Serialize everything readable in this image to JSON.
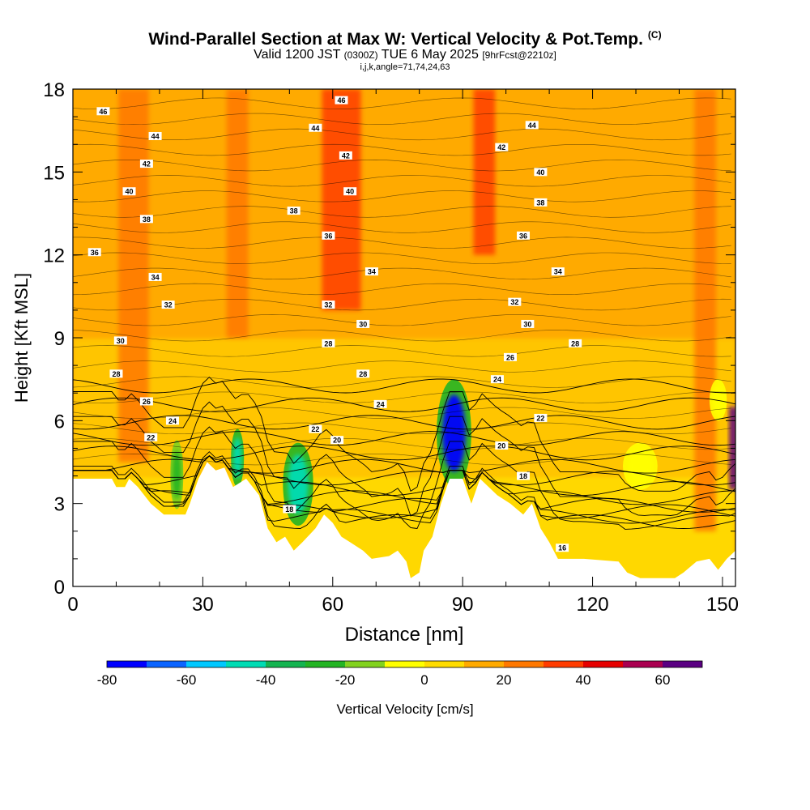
{
  "title": {
    "main": "Wind-Parallel Section at Max W: Vertical Velocity & Pot.Temp.",
    "copyright": "(C)",
    "valid_prefix": "Valid 1200 JST",
    "valid_utc": "(0300Z)",
    "valid_date": "TUE 6 May 2025",
    "forecast": "[9hrFcst@2210z]",
    "indices": "i,j,k,angle=71,74,24,63"
  },
  "chart_data": {
    "type": "heatmap",
    "xlabel": "Distance [nm]",
    "ylabel": "Height [Kft MSL]",
    "xlim": [
      0,
      153
    ],
    "ylim": [
      0,
      18
    ],
    "xticks": [
      0,
      30,
      60,
      90,
      120,
      150
    ],
    "yticks": [
      0,
      3,
      6,
      9,
      12,
      15,
      18
    ],
    "grid": false,
    "colorbar": {
      "label": "Vertical Velocity [cm/s]",
      "range": [
        -80,
        70
      ],
      "step": 10,
      "tick_labels": [
        "-80",
        "-60",
        "-40",
        "-20",
        "0",
        "20",
        "40",
        "60"
      ],
      "tick_values": [
        -80,
        -60,
        -40,
        -20,
        0,
        20,
        40,
        60
      ],
      "colors": [
        "#0000ff",
        "#0a64ff",
        "#00c8ff",
        "#00dcb4",
        "#14b450",
        "#23b423",
        "#82d21e",
        "#ffff00",
        "#ffdc00",
        "#ffaa00",
        "#ff7800",
        "#ff3c00",
        "#e60000",
        "#aa0050",
        "#5a0082"
      ]
    },
    "terrain_kft": [
      [
        0,
        3.9
      ],
      [
        9,
        3.9
      ],
      [
        10,
        3.6
      ],
      [
        12,
        3.6
      ],
      [
        13,
        3.9
      ],
      [
        15,
        3.6
      ],
      [
        18,
        3.0
      ],
      [
        21,
        2.6
      ],
      [
        26,
        2.6
      ],
      [
        27,
        3.0
      ],
      [
        29,
        3.9
      ],
      [
        31,
        4.5
      ],
      [
        33,
        4.2
      ],
      [
        35,
        4.3
      ],
      [
        37,
        3.6
      ],
      [
        40,
        3.9
      ],
      [
        43,
        3.3
      ],
      [
        45,
        2.1
      ],
      [
        47,
        1.6
      ],
      [
        49,
        1.8
      ],
      [
        51,
        1.3
      ],
      [
        53,
        1.6
      ],
      [
        56,
        2.1
      ],
      [
        58,
        2.6
      ],
      [
        60,
        2.3
      ],
      [
        62,
        1.8
      ],
      [
        64,
        1.6
      ],
      [
        67,
        1.3
      ],
      [
        69,
        1.0
      ],
      [
        73,
        1.1
      ],
      [
        75,
        1.3
      ],
      [
        77,
        0.9
      ],
      [
        78,
        0.3
      ],
      [
        80,
        0.5
      ],
      [
        81,
        1.3
      ],
      [
        83,
        1.8
      ],
      [
        85,
        3.0
      ],
      [
        87,
        3.9
      ],
      [
        90,
        3.9
      ],
      [
        92,
        3.0
      ],
      [
        94,
        3.9
      ],
      [
        96,
        3.6
      ],
      [
        98,
        3.3
      ],
      [
        101,
        3.0
      ],
      [
        104,
        2.6
      ],
      [
        106,
        3.0
      ],
      [
        108,
        2.1
      ],
      [
        110,
        1.6
      ],
      [
        112,
        1.0
      ],
      [
        118,
        1.0
      ],
      [
        126,
        0.9
      ],
      [
        128,
        0.5
      ],
      [
        131,
        0.3
      ],
      [
        139,
        0.3
      ],
      [
        141,
        0.5
      ],
      [
        144,
        0.9
      ],
      [
        147,
        1.0
      ],
      [
        149,
        0.6
      ],
      [
        151,
        1.0
      ],
      [
        153,
        1.3
      ]
    ],
    "theta_contours_k": [
      16,
      18,
      20,
      22,
      24,
      26,
      28,
      30,
      32,
      34,
      36,
      38,
      40,
      42,
      44,
      46
    ],
    "contour_labels": [
      {
        "text": "46",
        "x": 7,
        "y": 17.2
      },
      {
        "text": "46",
        "x": 62,
        "y": 17.6
      },
      {
        "text": "44",
        "x": 19,
        "y": 16.3
      },
      {
        "text": "44",
        "x": 56,
        "y": 16.6
      },
      {
        "text": "44",
        "x": 106,
        "y": 16.7
      },
      {
        "text": "42",
        "x": 17,
        "y": 15.3
      },
      {
        "text": "42",
        "x": 63,
        "y": 15.6
      },
      {
        "text": "42",
        "x": 99,
        "y": 15.9
      },
      {
        "text": "40",
        "x": 13,
        "y": 14.3
      },
      {
        "text": "40",
        "x": 64,
        "y": 14.3
      },
      {
        "text": "40",
        "x": 108,
        "y": 15.0
      },
      {
        "text": "38",
        "x": 17,
        "y": 13.3
      },
      {
        "text": "38",
        "x": 51,
        "y": 13.6
      },
      {
        "text": "38",
        "x": 108,
        "y": 13.9
      },
      {
        "text": "36",
        "x": 5,
        "y": 12.1
      },
      {
        "text": "36",
        "x": 59,
        "y": 12.7
      },
      {
        "text": "36",
        "x": 104,
        "y": 12.7
      },
      {
        "text": "34",
        "x": 19,
        "y": 11.2
      },
      {
        "text": "34",
        "x": 69,
        "y": 11.4
      },
      {
        "text": "34",
        "x": 112,
        "y": 11.4
      },
      {
        "text": "32",
        "x": 22,
        "y": 10.2
      },
      {
        "text": "32",
        "x": 59,
        "y": 10.2
      },
      {
        "text": "32",
        "x": 102,
        "y": 10.3
      },
      {
        "text": "30",
        "x": 11,
        "y": 8.9
      },
      {
        "text": "30",
        "x": 67,
        "y": 9.5
      },
      {
        "text": "30",
        "x": 105,
        "y": 9.5
      },
      {
        "text": "28",
        "x": 10,
        "y": 7.7
      },
      {
        "text": "28",
        "x": 59,
        "y": 8.8
      },
      {
        "text": "28",
        "x": 67,
        "y": 7.7
      },
      {
        "text": "28",
        "x": 116,
        "y": 8.8
      },
      {
        "text": "26",
        "x": 17,
        "y": 6.7
      },
      {
        "text": "26",
        "x": 101,
        "y": 8.3
      },
      {
        "text": "24",
        "x": 23,
        "y": 6.0
      },
      {
        "text": "24",
        "x": 71,
        "y": 6.6
      },
      {
        "text": "24",
        "x": 98,
        "y": 7.5
      },
      {
        "text": "22",
        "x": 18,
        "y": 5.4
      },
      {
        "text": "22",
        "x": 56,
        "y": 5.7
      },
      {
        "text": "22",
        "x": 108,
        "y": 6.1
      },
      {
        "text": "20",
        "x": 61,
        "y": 5.3
      },
      {
        "text": "20",
        "x": 99,
        "y": 5.1
      },
      {
        "text": "18",
        "x": 50,
        "y": 2.8
      },
      {
        "text": "18",
        "x": 104,
        "y": 4.0
      },
      {
        "text": "16",
        "x": 113,
        "y": 1.4
      }
    ],
    "velocity_features": [
      {
        "kind": "updraft_column",
        "x": 14,
        "width": 7,
        "y_min": 4.5,
        "y_max": 18,
        "w": 25
      },
      {
        "kind": "updraft_column",
        "x": 38,
        "width": 5,
        "y_min": 9,
        "y_max": 18,
        "w": 20
      },
      {
        "kind": "updraft_column",
        "x": 62,
        "width": 9,
        "y_min": 10,
        "y_max": 18,
        "w": 35
      },
      {
        "kind": "updraft_column",
        "x": 95,
        "width": 5,
        "y_min": 12,
        "y_max": 18,
        "w": 30
      },
      {
        "kind": "updraft_column",
        "x": 146,
        "width": 5,
        "y_min": 2,
        "y_max": 18,
        "w": 25
      },
      {
        "kind": "downdraft",
        "x": 88,
        "width": 8,
        "y_min": 3.6,
        "y_max": 7.5,
        "w": -80
      },
      {
        "kind": "downdraft",
        "x": 52,
        "width": 7,
        "y_min": 2.2,
        "y_max": 5.2,
        "w": -45
      },
      {
        "kind": "downdraft",
        "x": 38,
        "width": 3,
        "y_min": 3.6,
        "y_max": 5.7,
        "w": -45
      },
      {
        "kind": "downdraft",
        "x": 24,
        "width": 3,
        "y_min": 2.8,
        "y_max": 5.3,
        "w": -30
      },
      {
        "kind": "downdraft",
        "x": 131,
        "width": 8,
        "y_min": 3.5,
        "y_max": 5.2,
        "w": -10
      },
      {
        "kind": "downdraft",
        "x": 149,
        "width": 4,
        "y_min": 6,
        "y_max": 7.5,
        "w": -10
      },
      {
        "kind": "updraft_edge",
        "x": 152.5,
        "width": 2,
        "y_min": 3.5,
        "y_max": 6.5,
        "w": 65
      }
    ]
  }
}
